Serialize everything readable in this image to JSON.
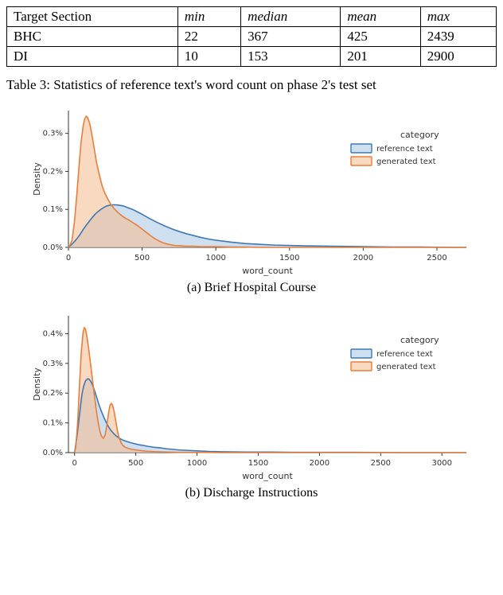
{
  "table": {
    "columns": [
      "Target Section",
      "min",
      "median",
      "mean",
      "max"
    ],
    "rows": [
      [
        "BHC",
        "22",
        "367",
        "425",
        "2439"
      ],
      [
        "DI",
        "10",
        "153",
        "201",
        "2900"
      ]
    ],
    "caption": "Table 3: Statistics of reference text's word count on phase 2's test set"
  },
  "chartA": {
    "title": "(a) Brief Hospital Course",
    "xlabel": "word_count",
    "ylabel": "Density",
    "xlim": [
      0,
      2700
    ],
    "ylim": [
      0,
      0.36
    ],
    "xticks": [
      0,
      500,
      1000,
      1500,
      2000,
      2500
    ],
    "yticks": [
      0,
      0.1,
      0.2,
      0.3
    ],
    "yticklabels": [
      "0.0%",
      "0.1%",
      "0.2%",
      "0.3%"
    ],
    "colors": {
      "ref_line": "#3d78b4",
      "ref_fill": "#a6c5e1",
      "gen_line": "#e87e3a",
      "gen_fill": "#f5b98e",
      "background": "#ffffff"
    },
    "legend": {
      "title": "category",
      "items": [
        "reference text",
        "generated text"
      ]
    },
    "series_ref": [
      [
        0,
        0.0
      ],
      [
        20,
        0.007
      ],
      [
        40,
        0.015
      ],
      [
        60,
        0.024
      ],
      [
        80,
        0.035
      ],
      [
        100,
        0.047
      ],
      [
        120,
        0.058
      ],
      [
        140,
        0.068
      ],
      [
        160,
        0.078
      ],
      [
        180,
        0.087
      ],
      [
        200,
        0.094
      ],
      [
        220,
        0.1
      ],
      [
        240,
        0.105
      ],
      [
        260,
        0.109
      ],
      [
        280,
        0.111
      ],
      [
        300,
        0.112
      ],
      [
        320,
        0.112
      ],
      [
        340,
        0.111
      ],
      [
        360,
        0.11
      ],
      [
        380,
        0.108
      ],
      [
        400,
        0.105
      ],
      [
        420,
        0.102
      ],
      [
        440,
        0.099
      ],
      [
        460,
        0.095
      ],
      [
        480,
        0.091
      ],
      [
        500,
        0.087
      ],
      [
        550,
        0.076
      ],
      [
        600,
        0.066
      ],
      [
        650,
        0.057
      ],
      [
        700,
        0.049
      ],
      [
        750,
        0.042
      ],
      [
        800,
        0.036
      ],
      [
        850,
        0.031
      ],
      [
        900,
        0.026
      ],
      [
        950,
        0.022
      ],
      [
        1000,
        0.019
      ],
      [
        1100,
        0.014
      ],
      [
        1200,
        0.01
      ],
      [
        1300,
        0.008
      ],
      [
        1400,
        0.006
      ],
      [
        1500,
        0.005
      ],
      [
        1600,
        0.004
      ],
      [
        1800,
        0.003
      ],
      [
        2000,
        0.002
      ],
      [
        2200,
        0.001
      ],
      [
        2400,
        0.001
      ],
      [
        2600,
        0.0
      ],
      [
        2700,
        0.0
      ]
    ],
    "series_gen": [
      [
        0,
        0.0
      ],
      [
        10,
        0.005
      ],
      [
        25,
        0.02
      ],
      [
        40,
        0.065
      ],
      [
        55,
        0.13
      ],
      [
        70,
        0.205
      ],
      [
        85,
        0.275
      ],
      [
        100,
        0.32
      ],
      [
        110,
        0.338
      ],
      [
        120,
        0.345
      ],
      [
        130,
        0.342
      ],
      [
        145,
        0.325
      ],
      [
        160,
        0.295
      ],
      [
        175,
        0.26
      ],
      [
        190,
        0.225
      ],
      [
        210,
        0.19
      ],
      [
        230,
        0.16
      ],
      [
        250,
        0.14
      ],
      [
        270,
        0.125
      ],
      [
        290,
        0.112
      ],
      [
        310,
        0.102
      ],
      [
        330,
        0.094
      ],
      [
        350,
        0.087
      ],
      [
        370,
        0.081
      ],
      [
        390,
        0.076
      ],
      [
        410,
        0.072
      ],
      [
        430,
        0.067
      ],
      [
        450,
        0.062
      ],
      [
        470,
        0.057
      ],
      [
        490,
        0.051
      ],
      [
        510,
        0.045
      ],
      [
        530,
        0.039
      ],
      [
        550,
        0.033
      ],
      [
        570,
        0.027
      ],
      [
        590,
        0.022
      ],
      [
        610,
        0.018
      ],
      [
        630,
        0.014
      ],
      [
        650,
        0.011
      ],
      [
        680,
        0.008
      ],
      [
        720,
        0.005
      ],
      [
        760,
        0.004
      ],
      [
        800,
        0.003
      ],
      [
        850,
        0.003
      ],
      [
        900,
        0.002
      ],
      [
        1000,
        0.002
      ],
      [
        1100,
        0.001
      ],
      [
        1200,
        0.001
      ],
      [
        1300,
        0.0
      ],
      [
        1500,
        0.0
      ],
      [
        2000,
        0.0
      ],
      [
        2700,
        0.0
      ]
    ]
  },
  "chartB": {
    "title": "(b) Discharge Instructions",
    "xlabel": "word_count",
    "ylabel": "Density",
    "xlim": [
      -50,
      3200
    ],
    "ylim": [
      0,
      0.46
    ],
    "xticks": [
      0,
      500,
      1000,
      1500,
      2000,
      2500,
      3000
    ],
    "yticks": [
      0,
      0.1,
      0.2,
      0.3,
      0.4
    ],
    "yticklabels": [
      "0.0%",
      "0.1%",
      "0.2%",
      "0.3%",
      "0.4%"
    ],
    "colors": {
      "ref_line": "#3d78b4",
      "ref_fill": "#a6c5e1",
      "gen_line": "#e87e3a",
      "gen_fill": "#f5b98e",
      "background": "#ffffff"
    },
    "legend": {
      "title": "category",
      "items": [
        "reference text",
        "generated text"
      ]
    },
    "series_ref": [
      [
        0,
        0.0
      ],
      [
        15,
        0.04
      ],
      [
        30,
        0.09
      ],
      [
        45,
        0.145
      ],
      [
        60,
        0.195
      ],
      [
        75,
        0.225
      ],
      [
        90,
        0.242
      ],
      [
        105,
        0.248
      ],
      [
        115,
        0.248
      ],
      [
        125,
        0.244
      ],
      [
        140,
        0.234
      ],
      [
        155,
        0.218
      ],
      [
        170,
        0.2
      ],
      [
        185,
        0.18
      ],
      [
        200,
        0.16
      ],
      [
        220,
        0.138
      ],
      [
        240,
        0.118
      ],
      [
        260,
        0.1
      ],
      [
        280,
        0.085
      ],
      [
        300,
        0.073
      ],
      [
        320,
        0.064
      ],
      [
        340,
        0.056
      ],
      [
        360,
        0.05
      ],
      [
        380,
        0.045
      ],
      [
        400,
        0.041
      ],
      [
        430,
        0.037
      ],
      [
        460,
        0.033
      ],
      [
        490,
        0.03
      ],
      [
        520,
        0.027
      ],
      [
        550,
        0.025
      ],
      [
        600,
        0.021
      ],
      [
        650,
        0.018
      ],
      [
        700,
        0.016
      ],
      [
        750,
        0.013
      ],
      [
        800,
        0.011
      ],
      [
        850,
        0.009
      ],
      [
        900,
        0.008
      ],
      [
        1000,
        0.006
      ],
      [
        1100,
        0.004
      ],
      [
        1200,
        0.003
      ],
      [
        1400,
        0.002
      ],
      [
        1600,
        0.002
      ],
      [
        1800,
        0.001
      ],
      [
        2000,
        0.001
      ],
      [
        2300,
        0.001
      ],
      [
        2700,
        0.0
      ],
      [
        3000,
        0.0
      ],
      [
        3200,
        0.0
      ]
    ],
    "series_gen": [
      [
        0,
        0.0
      ],
      [
        10,
        0.02
      ],
      [
        25,
        0.1
      ],
      [
        40,
        0.225
      ],
      [
        55,
        0.34
      ],
      [
        70,
        0.405
      ],
      [
        80,
        0.42
      ],
      [
        90,
        0.415
      ],
      [
        100,
        0.392
      ],
      [
        115,
        0.35
      ],
      [
        130,
        0.3
      ],
      [
        145,
        0.25
      ],
      [
        160,
        0.198
      ],
      [
        175,
        0.15
      ],
      [
        190,
        0.108
      ],
      [
        205,
        0.075
      ],
      [
        220,
        0.055
      ],
      [
        235,
        0.048
      ],
      [
        250,
        0.06
      ],
      [
        265,
        0.095
      ],
      [
        278,
        0.135
      ],
      [
        290,
        0.16
      ],
      [
        300,
        0.165
      ],
      [
        310,
        0.16
      ],
      [
        322,
        0.14
      ],
      [
        335,
        0.11
      ],
      [
        348,
        0.078
      ],
      [
        362,
        0.052
      ],
      [
        378,
        0.035
      ],
      [
        395,
        0.024
      ],
      [
        415,
        0.018
      ],
      [
        440,
        0.014
      ],
      [
        470,
        0.011
      ],
      [
        500,
        0.009
      ],
      [
        540,
        0.007
      ],
      [
        580,
        0.005
      ],
      [
        620,
        0.004
      ],
      [
        680,
        0.003
      ],
      [
        750,
        0.002
      ],
      [
        850,
        0.001
      ],
      [
        1000,
        0.001
      ],
      [
        1200,
        0.0
      ],
      [
        1500,
        0.0
      ],
      [
        2000,
        0.0
      ],
      [
        3000,
        0.0
      ],
      [
        3200,
        0.0
      ]
    ]
  }
}
